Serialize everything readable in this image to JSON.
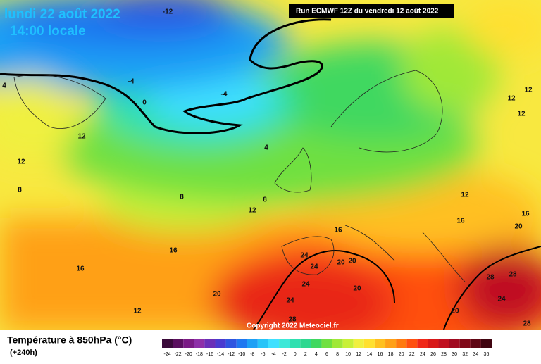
{
  "header": {
    "date": "lundi 22 août 2022",
    "time": "14:00 locale",
    "run": "Run ECMWF 12Z du vendredi 12 août 2022",
    "copyright": "Copyright 2022 Meteociel.fr"
  },
  "legend": {
    "title": "Température à 850hPa (°C)",
    "lead": "(+240h)",
    "ticks": [
      -24,
      -22,
      -20,
      -18,
      -16,
      -14,
      -12,
      -10,
      -8,
      -6,
      -4,
      -2,
      0,
      2,
      4,
      6,
      8,
      10,
      12,
      14,
      16,
      18,
      20,
      22,
      24,
      26,
      28,
      30,
      32,
      34,
      36
    ],
    "colors": [
      "#3a0a3a",
      "#5a0f5f",
      "#7a1a85",
      "#8e2fa8",
      "#6a2fb8",
      "#4a3bd0",
      "#2f55e0",
      "#1f78f0",
      "#1ea0f5",
      "#28c4f8",
      "#40e0ff",
      "#3ee8d8",
      "#2fe0b0",
      "#2fd890",
      "#40d860",
      "#70e040",
      "#a0e838",
      "#c8f038",
      "#f0f040",
      "#ffe030",
      "#ffc020",
      "#ffa018",
      "#ff7a10",
      "#ff5010",
      "#f02818",
      "#d81818",
      "#c01020",
      "#a00a20",
      "#800818",
      "#600614",
      "#400410"
    ]
  },
  "contour_labels": [
    -12,
    -4,
    -4,
    0,
    4,
    4,
    12,
    12,
    8,
    8,
    8,
    12,
    16,
    16,
    12,
    20,
    16,
    24,
    24,
    20,
    20,
    24,
    20,
    24,
    28,
    20,
    12,
    16,
    16,
    20,
    28,
    28,
    24,
    28,
    12,
    12,
    12
  ]
}
